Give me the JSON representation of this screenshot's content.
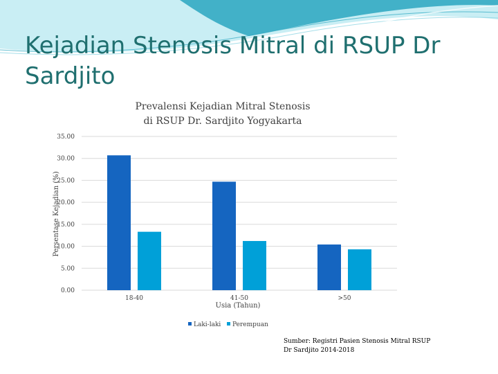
{
  "slide": {
    "title": "Kejadian Stenosis Mitral di RSUP Dr Sardjito",
    "source_note": "Sumber: Registri Pasien Stenosis Mitral RSUP\nDr Sardjito 2014-2018"
  },
  "colors": {
    "title": "#1f6f6f",
    "banner_dark": "#2aa6c0",
    "banner_light": "#c9eef4",
    "gridline": "#d9d9d9",
    "text": "#404040"
  },
  "chart_data": {
    "type": "bar",
    "title_lines": [
      "Prevalensi Kejadian Mitral Stenosis",
      "di RSUP Dr. Sardjito Yogyakarta"
    ],
    "categories": [
      "18-40",
      "41-50",
      ">50"
    ],
    "series": [
      {
        "name": "Laki-laki",
        "color": "#1565c0",
        "values": [
          30.7,
          24.7,
          10.4
        ]
      },
      {
        "name": "Perempuan",
        "color": "#00a0d8",
        "values": [
          13.3,
          11.2,
          9.3
        ]
      }
    ],
    "xlabel": "Usia (Tahun)",
    "ylabel": "Persentase Kejadian (%)",
    "ylim": [
      0,
      35
    ],
    "yticks": [
      "0.00",
      "5.00",
      "10.00",
      "15.00",
      "20.00",
      "25.00",
      "30.00",
      "35.00"
    ],
    "grid": true,
    "legend_position": "bottom"
  }
}
